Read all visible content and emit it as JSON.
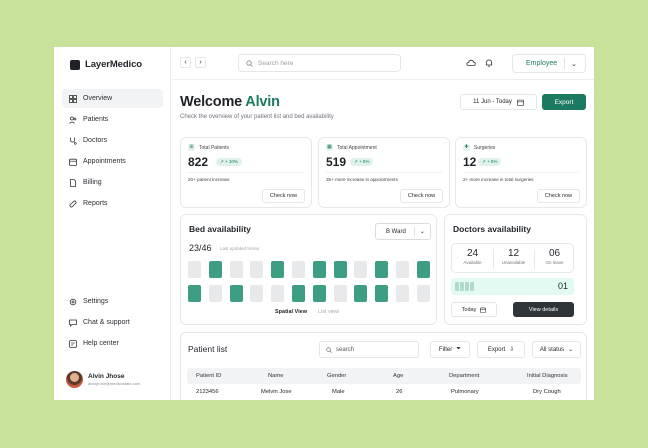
{
  "app": {
    "name": "LayerMedico"
  },
  "sidebar": {
    "items": [
      {
        "label": "Overview",
        "icon": "grid-icon",
        "active": true
      },
      {
        "label": "Patients",
        "icon": "users-icon"
      },
      {
        "label": "Doctors",
        "icon": "stethoscope-icon"
      },
      {
        "label": "Appointments",
        "icon": "calendar-icon"
      },
      {
        "label": "Billing",
        "icon": "document-icon"
      },
      {
        "label": "Reports",
        "icon": "pill-icon"
      }
    ],
    "bottom_items": [
      {
        "label": "Settings",
        "icon": "gear-icon"
      },
      {
        "label": "Chat & support",
        "icon": "chat-icon"
      },
      {
        "label": "Help center",
        "icon": "help-icon"
      }
    ],
    "user": {
      "name": "Alvin Jhose",
      "email": "alvinjhose@medicotdata.com"
    }
  },
  "topbar": {
    "search_placeholder": "Search here",
    "role": "Employee"
  },
  "header": {
    "welcome": "Welcome",
    "user_name": "Alvin",
    "subtitle": "Check the overview of your patient list and bed availability",
    "date_range": "11 Jun - Today",
    "export_label": "Export"
  },
  "stats": [
    {
      "title": "Total Patients",
      "value": "822",
      "change": "+ 10%",
      "note": "20+ patient increase",
      "action": "Check now"
    },
    {
      "title": "Total Appointment",
      "value": "519",
      "change": "+ 5%",
      "note": "35+ more increase in appointments",
      "action": "Check now"
    },
    {
      "title": "Surgeries",
      "value": "12",
      "change": "+ 5%",
      "note": "2+ more increase in total surgeries",
      "action": "Check now"
    }
  ],
  "beds": {
    "title": "Bed availability",
    "ward": "B Ward",
    "count": "23/46",
    "updated": "Last updated 5mins",
    "row1": [
      false,
      true,
      false,
      false,
      true,
      false,
      true,
      true,
      false,
      true,
      false,
      true
    ],
    "row2": [
      true,
      false,
      true,
      false,
      false,
      true,
      true,
      false,
      true,
      true,
      false,
      false
    ],
    "views": [
      "Spatial View",
      "List view"
    ]
  },
  "doctors": {
    "title": "Doctors availability",
    "stats": [
      {
        "value": "24",
        "label": "Available"
      },
      {
        "value": "12",
        "label": "Unavailable"
      },
      {
        "value": "06",
        "label": "On leave"
      }
    ],
    "bar_value": "01",
    "today_label": "Today",
    "details_label": "View details"
  },
  "patients": {
    "title": "Patient list",
    "search_placeholder": "search",
    "filter_label": "Filter",
    "export_label": "Export",
    "status_label": "All status",
    "columns": [
      "Patient ID",
      "Name",
      "Gender",
      "Age",
      "Department",
      "Initial Diagnosis"
    ],
    "rows": [
      [
        "2123456",
        "Melvin Jose",
        "Male",
        "26",
        "Pulmonary",
        "Dry Cough"
      ]
    ]
  },
  "colors": {
    "accent": "#1c7a63",
    "bed_occupied": "#3d9e83",
    "bed_free": "#e7e9eb",
    "background": "#c8e29a"
  }
}
